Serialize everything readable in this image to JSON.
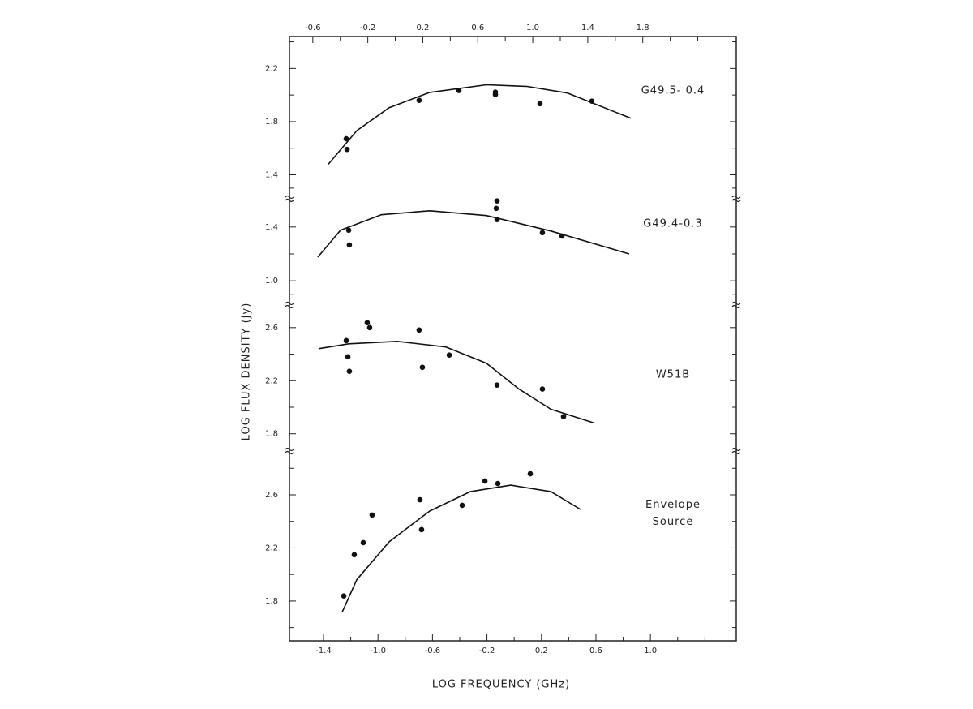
{
  "chart_data": {
    "type": "scatter",
    "xlabel": "LOG FREQUENCY (GHz)",
    "ylabel": "LOG FLUX DENSITY (Jy)",
    "xlim": [
      -1.65,
      1.63
    ],
    "xticks": [
      -1.4,
      {
        "value": -1,
        "label": "-1.0"
      },
      -0.6,
      -0.2,
      0.2,
      0.6,
      {
        "value": 1,
        "label": "1.0"
      }
    ],
    "xminor": [
      -1.2,
      -0.8,
      -0.4,
      0,
      0.4,
      0.8,
      1.2,
      1.4
    ],
    "x2lim": [
      -0.77,
      2.48
    ],
    "x2ticks": [
      -0.6,
      -0.2,
      0.2,
      0.6,
      {
        "value": 1,
        "label": "1.0"
      },
      1.4,
      1.8
    ],
    "x2minor": [
      -0.4,
      0,
      0.4,
      0.8,
      1.2,
      1.6,
      2.0,
      2.2
    ],
    "color": "#111",
    "panels": [
      {
        "label": [
          "G49.5- 0.4"
        ],
        "ylim": [
          1.22,
          2.44
        ],
        "yticks": [
          2.2,
          1.8,
          1.4
        ],
        "yminor": [
          2.4,
          2.0,
          1.6,
          1.3
        ],
        "points": {
          "x": [
            -1.233,
            -1.227,
            -0.698,
            -0.406,
            -0.138,
            -0.138,
            0.189,
            0.57
          ],
          "y": [
            1.671,
            1.591,
            1.96,
            2.034,
            2.022,
            2.003,
            1.935,
            1.954
          ]
        },
        "curve": {
          "x": [
            -1.364,
            -1.156,
            -0.918,
            -0.62,
            -0.204,
            0.094,
            0.392,
            0.856
          ],
          "y": [
            1.48,
            1.732,
            1.905,
            2.02,
            2.077,
            2.065,
            2.015,
            1.825
          ]
        }
      },
      {
        "label": [
          "G49.4-0.3"
        ],
        "ylim": [
          0.82,
          1.61
        ],
        "yticks": [
          1.4,
          {
            "value": 1,
            "label": "1.0"
          }
        ],
        "yminor": [
          1.6,
          1.2,
          0.9
        ],
        "points": {
          "x": [
            -1.215,
            -1.21,
            -0.126,
            -0.132,
            -0.126,
            0.207,
            0.35
          ],
          "y": [
            1.376,
            1.267,
            1.594,
            1.539,
            1.455,
            1.358,
            1.333
          ]
        },
        "curve": {
          "x": [
            -1.442,
            -1.275,
            -0.977,
            -0.62,
            -0.204,
            0.27,
            0.844
          ],
          "y": [
            1.176,
            1.376,
            1.491,
            1.521,
            1.485,
            1.37,
            1.2
          ]
        }
      },
      {
        "label": [
          "W51B"
        ],
        "ylim": [
          1.67,
          2.77
        ],
        "yticks": [
          2.6,
          2.2,
          1.8
        ],
        "yminor": [
          2.4,
          2.0
        ],
        "points": {
          "x": [
            -1.233,
            -1.221,
            -1.21,
            -1.079,
            -1.061,
            -0.698,
            -0.674,
            -0.477,
            -0.126,
            0.207,
            0.362
          ],
          "y": [
            2.502,
            2.38,
            2.271,
            2.637,
            2.6,
            2.582,
            2.301,
            2.393,
            2.167,
            2.137,
            1.929
          ]
        },
        "curve": {
          "x": [
            -1.436,
            -1.215,
            -0.858,
            -0.501,
            -0.204,
            0.035,
            0.27,
            0.588
          ],
          "y": [
            2.441,
            2.478,
            2.496,
            2.454,
            2.332,
            2.137,
            1.985,
            1.881
          ]
        }
      },
      {
        "label": [
          "Envelope",
          "Source"
        ],
        "ylim": [
          1.5,
          2.93
        ],
        "yticks": [
          2.6,
          2.2,
          1.8
        ],
        "yminor": [
          2.8,
          2.4,
          2.0,
          1.6
        ],
        "points": {
          "x": [
            -1.251,
            -1.174,
            -1.108,
            -1.043,
            -0.692,
            -0.68,
            -0.382,
            -0.215,
            -0.12,
            0.118
          ],
          "y": [
            1.838,
            2.149,
            2.24,
            2.448,
            2.563,
            2.338,
            2.521,
            2.704,
            2.685,
            2.759
          ]
        },
        "curve": {
          "x": [
            -1.263,
            -1.156,
            -0.918,
            -0.62,
            -0.323,
            -0.025,
            0.27,
            0.487
          ],
          "y": [
            1.716,
            1.96,
            2.246,
            2.478,
            2.624,
            2.673,
            2.624,
            2.49
          ]
        }
      }
    ]
  }
}
